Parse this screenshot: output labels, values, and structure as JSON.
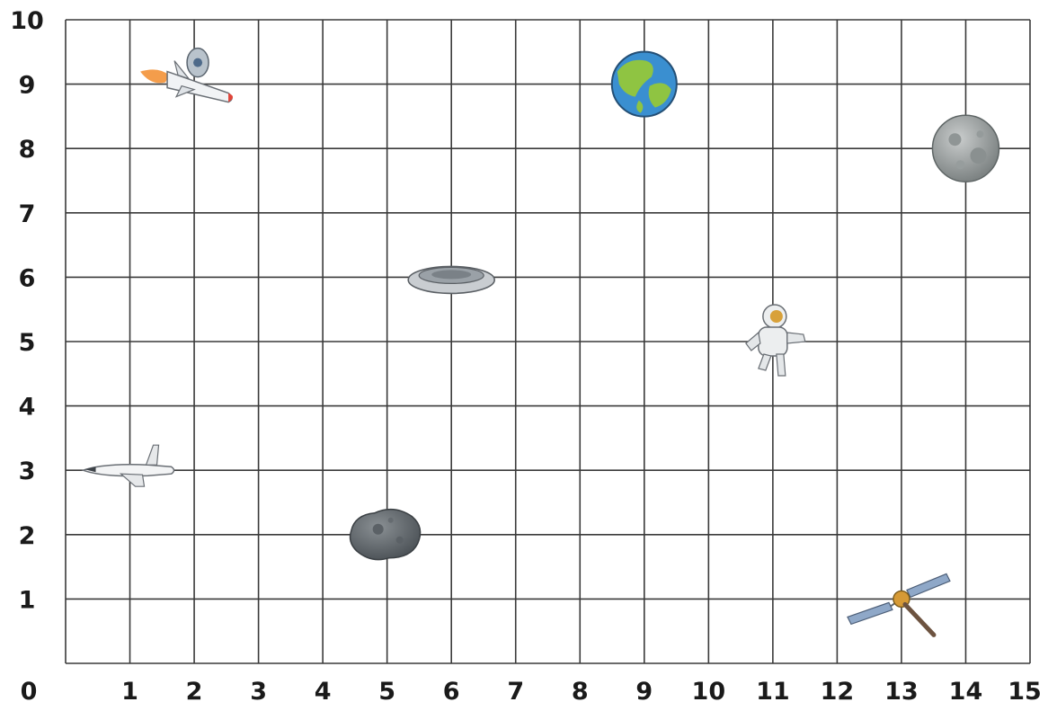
{
  "chart_data": {
    "type": "scatter",
    "title": "",
    "xlabel": "",
    "ylabel": "",
    "xlim": [
      0,
      15
    ],
    "ylim": [
      0,
      10
    ],
    "grid": true,
    "x_ticks": [
      "0",
      "1",
      "2",
      "3",
      "4",
      "5",
      "6",
      "7",
      "8",
      "9",
      "10",
      "11",
      "12",
      "13",
      "14",
      "15"
    ],
    "y_ticks": [
      "1",
      "2",
      "3",
      "4",
      "5",
      "6",
      "7",
      "8",
      "9",
      "10"
    ],
    "points": [
      {
        "icon": "rocket-icon",
        "x": 2,
        "y": 9
      },
      {
        "icon": "earth-icon",
        "x": 9,
        "y": 9
      },
      {
        "icon": "moon-icon",
        "x": 14,
        "y": 8
      },
      {
        "icon": "ufo-icon",
        "x": 6,
        "y": 6
      },
      {
        "icon": "astronaut-icon",
        "x": 11,
        "y": 5
      },
      {
        "icon": "space-shuttle-icon",
        "x": 1,
        "y": 3
      },
      {
        "icon": "asteroid-icon",
        "x": 5,
        "y": 2
      },
      {
        "icon": "satellite-icon",
        "x": 13,
        "y": 1
      }
    ]
  }
}
